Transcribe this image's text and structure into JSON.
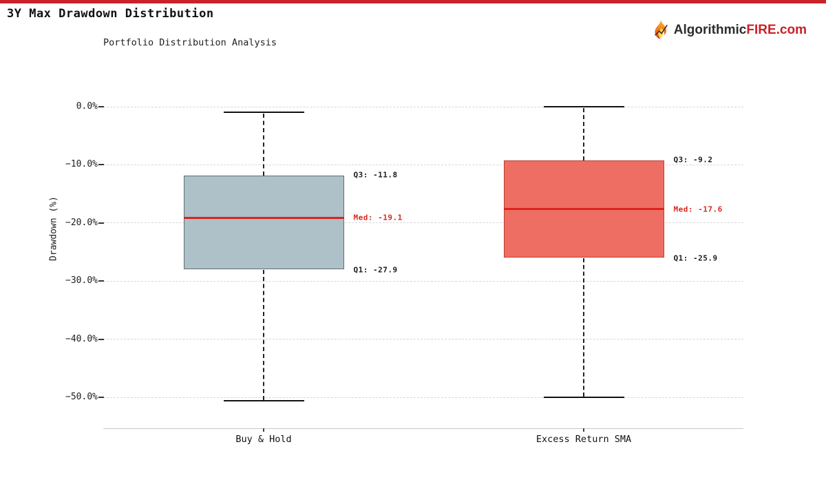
{
  "page": {
    "background": "#ffffff",
    "top_bar_color": "#c92228"
  },
  "header": {
    "logo": {
      "icon": "flame-icon",
      "brand_dark": "Algorithmic",
      "brand_red": "FIRE",
      "brand_suffix": ".com",
      "accent_color": "#cb2026",
      "text_color": "#2d2d2d"
    }
  },
  "chart_data": {
    "type": "boxplot",
    "title": "3Y Max Drawdown Distribution",
    "subtitle": "Portfolio Distribution Analysis",
    "ylabel": "Drawdown (%)",
    "ylim": [
      -55,
      5
    ],
    "yticks": [
      {
        "value": 0,
        "label": "0.0%"
      },
      {
        "value": -10,
        "label": "−10.0%"
      },
      {
        "value": -20,
        "label": "−20.0%"
      },
      {
        "value": -30,
        "label": "−30.0%"
      },
      {
        "value": -40,
        "label": "−40.0%"
      },
      {
        "value": -50,
        "label": "−50.0%"
      }
    ],
    "grid": {
      "horizontal": true,
      "style": "dashed",
      "color": "#d6d6d6"
    },
    "legend": "none",
    "categories": [
      "Buy & Hold",
      "Excess Return SMA"
    ],
    "series": [
      {
        "name": "Buy & Hold",
        "whisker_high": -0.9,
        "q3": -11.8,
        "median": -19.1,
        "q1": -27.9,
        "whisker_low": -50.5,
        "box_fill": "#aec0c8",
        "box_edge": "#5f6e74",
        "labels": {
          "q3": "Q3: -11.8",
          "median": "Med: -19.1",
          "q1": "Q1: -27.9"
        }
      },
      {
        "name": "Excess Return SMA",
        "whisker_high": 0.0,
        "q3": -9.2,
        "median": -17.6,
        "q1": -25.9,
        "whisker_low": -50.0,
        "box_fill": "#ee6e64",
        "box_edge": "#bf3a2e",
        "labels": {
          "q3": "Q3: -9.2",
          "median": "Med: -17.6",
          "q1": "Q1: -25.9"
        }
      }
    ],
    "median_color": "#dc231c",
    "whisker_color": "#222222",
    "cap_color": "#111111",
    "annotation_color": "#1a1a1a",
    "annotation_median_color": "#d8281e"
  }
}
